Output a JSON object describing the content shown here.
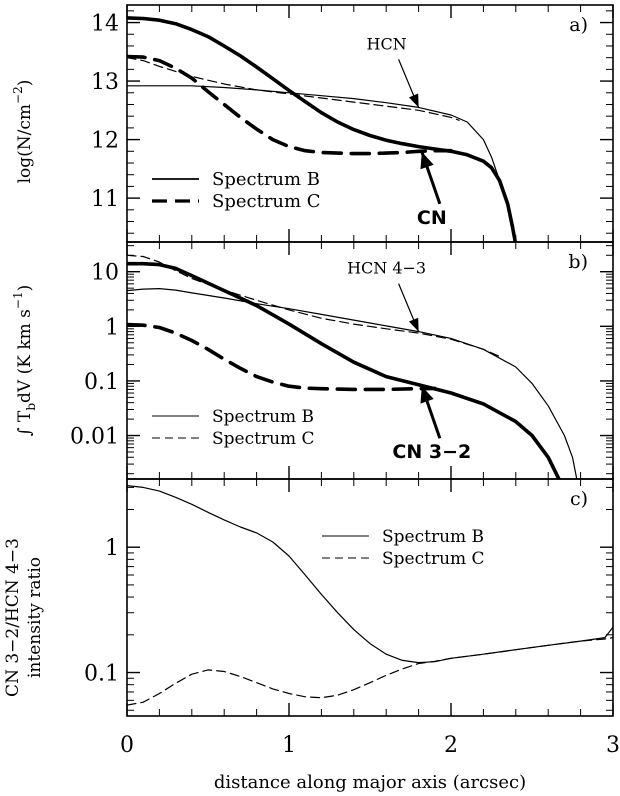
{
  "chart_data": [
    {
      "type": "line",
      "panel_label": "a)",
      "ylabel": "log(N/cm⁻²)",
      "xlim": [
        0,
        3
      ],
      "ylim": [
        10.25,
        14.3
      ],
      "yscale": "linear",
      "yticks": [
        {
          "v": 11,
          "label": "11"
        },
        {
          "v": 12,
          "label": "12"
        },
        {
          "v": 13,
          "label": "13"
        },
        {
          "v": 14,
          "label": "14"
        }
      ],
      "series": [
        {
          "name": "CN",
          "molecule": "CN",
          "spectrum": "B",
          "style": "solid",
          "weight": "thick",
          "x": [
            0,
            0.1,
            0.2,
            0.3,
            0.4,
            0.5,
            0.6,
            0.7,
            0.8,
            0.9,
            1.0,
            1.1,
            1.2,
            1.3,
            1.4,
            1.5,
            1.6,
            1.7,
            1.8,
            1.9,
            2.0,
            2.1,
            2.2,
            2.25,
            2.3,
            2.35,
            2.38,
            2.4
          ],
          "y": [
            14.08,
            14.07,
            14.04,
            13.98,
            13.88,
            13.76,
            13.6,
            13.43,
            13.24,
            13.04,
            12.84,
            12.65,
            12.46,
            12.3,
            12.17,
            12.07,
            11.99,
            11.93,
            11.88,
            11.84,
            11.8,
            11.74,
            11.63,
            11.52,
            11.3,
            10.9,
            10.5,
            10.2
          ]
        },
        {
          "name": "CN",
          "molecule": "CN",
          "spectrum": "C",
          "style": "dashed",
          "weight": "thick",
          "x": [
            0,
            0.1,
            0.2,
            0.3,
            0.4,
            0.5,
            0.6,
            0.7,
            0.8,
            0.9,
            1.0,
            1.1,
            1.2,
            1.3,
            1.4,
            1.5,
            1.6,
            1.7,
            1.8,
            1.9,
            2.0
          ],
          "y": [
            13.42,
            13.41,
            13.35,
            13.22,
            13.05,
            12.82,
            12.6,
            12.38,
            12.18,
            12.0,
            11.88,
            11.81,
            11.78,
            11.77,
            11.76,
            11.76,
            11.77,
            11.78,
            11.8,
            11.81,
            11.81
          ]
        },
        {
          "name": "HCN",
          "molecule": "HCN",
          "spectrum": "B",
          "style": "solid",
          "weight": "thin",
          "x": [
            0,
            0.2,
            0.4,
            0.6,
            0.8,
            1.0,
            1.2,
            1.4,
            1.6,
            1.8,
            2.0,
            2.1,
            2.2,
            2.25,
            2.3,
            2.35,
            2.38,
            2.4
          ],
          "y": [
            12.92,
            12.92,
            12.92,
            12.89,
            12.85,
            12.8,
            12.75,
            12.7,
            12.63,
            12.55,
            12.42,
            12.3,
            12.0,
            11.7,
            11.3,
            10.9,
            10.5,
            10.2
          ]
        },
        {
          "name": "HCN",
          "molecule": "HCN",
          "spectrum": "C",
          "style": "dashed",
          "weight": "thin",
          "x": [
            0,
            0.1,
            0.2,
            0.4,
            0.6,
            0.8,
            1.0,
            1.2,
            1.4,
            1.6,
            1.8,
            2.0,
            2.05
          ],
          "y": [
            13.4,
            13.35,
            13.25,
            13.08,
            12.95,
            12.85,
            12.78,
            12.71,
            12.64,
            12.57,
            12.5,
            12.38,
            12.33
          ]
        }
      ],
      "legend": {
        "solid": "Spectrum B",
        "dashed": "Spectrum C",
        "placement": "lower-left",
        "weight": "thick"
      },
      "annotations": [
        {
          "text": "HCN",
          "arrow_to": [
            1.8,
            12.55
          ],
          "style": "thin"
        },
        {
          "text": "CN",
          "arrow_to": [
            1.82,
            11.79
          ],
          "style": "bold"
        }
      ]
    },
    {
      "type": "line",
      "panel_label": "b)",
      "ylabel": "∫ T_b dV  (K km s⁻¹)",
      "xlim": [
        0,
        3
      ],
      "ylim": [
        0.0016,
        35
      ],
      "yscale": "log",
      "yticks": [
        {
          "v": 0.01,
          "label": "0.01"
        },
        {
          "v": 0.1,
          "label": "0.1"
        },
        {
          "v": 1,
          "label": "1"
        },
        {
          "v": 10,
          "label": "10"
        }
      ],
      "series": [
        {
          "name": "CN 3-2",
          "molecule": "CN 3-2",
          "spectrum": "B",
          "style": "solid",
          "weight": "thick",
          "x": [
            0,
            0.1,
            0.2,
            0.3,
            0.4,
            0.6,
            0.8,
            1.0,
            1.2,
            1.4,
            1.6,
            1.8,
            2.0,
            2.2,
            2.4,
            2.5,
            2.6,
            2.65,
            2.68
          ],
          "y": [
            14,
            14,
            13.5,
            11.5,
            8.5,
            4.5,
            2.4,
            1.1,
            0.48,
            0.22,
            0.12,
            0.085,
            0.06,
            0.038,
            0.018,
            0.01,
            0.004,
            0.002,
            0.0013
          ]
        },
        {
          "name": "CN 3-2",
          "molecule": "CN 3-2",
          "spectrum": "C",
          "style": "dashed",
          "weight": "thick",
          "x": [
            0,
            0.1,
            0.2,
            0.3,
            0.4,
            0.5,
            0.6,
            0.7,
            0.8,
            0.9,
            1.0,
            1.1,
            1.2,
            1.4,
            1.6,
            1.8,
            1.9
          ],
          "y": [
            1.08,
            1.05,
            0.95,
            0.75,
            0.55,
            0.38,
            0.25,
            0.17,
            0.12,
            0.095,
            0.08,
            0.074,
            0.072,
            0.07,
            0.07,
            0.072,
            0.073
          ]
        },
        {
          "name": "HCN 4-3",
          "molecule": "HCN 4-3",
          "spectrum": "B",
          "style": "solid",
          "weight": "thin",
          "x": [
            0,
            0.1,
            0.2,
            0.3,
            0.4,
            0.6,
            0.8,
            1.0,
            1.2,
            1.4,
            1.6,
            1.8,
            2.0,
            2.2,
            2.4,
            2.5,
            2.6,
            2.7,
            2.75,
            2.78
          ],
          "y": [
            4.5,
            4.8,
            4.9,
            4.6,
            4.1,
            3.3,
            2.6,
            2.1,
            1.65,
            1.3,
            1.02,
            0.8,
            0.6,
            0.38,
            0.18,
            0.09,
            0.035,
            0.01,
            0.004,
            0.0014
          ]
        },
        {
          "name": "HCN 4-3",
          "molecule": "HCN 4-3",
          "spectrum": "C",
          "style": "dashed",
          "weight": "thin",
          "x": [
            0,
            0.1,
            0.2,
            0.3,
            0.4,
            0.6,
            0.8,
            1.0,
            1.2,
            1.4,
            1.6,
            1.8,
            2.0,
            2.2,
            2.3
          ],
          "y": [
            20,
            19,
            15,
            10.5,
            7.5,
            4.6,
            3,
            2,
            1.4,
            1.1,
            0.9,
            0.75,
            0.58,
            0.38,
            0.28
          ]
        }
      ],
      "legend": {
        "solid": "Spectrum B",
        "dashed": "Spectrum C",
        "placement": "lower-left",
        "weight": "thin"
      },
      "annotations": [
        {
          "text": "HCN 4−3",
          "arrow_to": [
            1.8,
            0.8
          ],
          "style": "thin"
        },
        {
          "text": "CN 3−2",
          "arrow_to": [
            1.82,
            0.08
          ],
          "style": "bold"
        }
      ]
    },
    {
      "type": "line",
      "panel_label": "c)",
      "ylabel_lines": [
        "CN 3−2/HCN 4−3",
        "intensity ratio"
      ],
      "xlabel": "distance along major axis (arcsec)",
      "xlim": [
        0,
        3
      ],
      "ylim": [
        0.045,
        3.5
      ],
      "yscale": "log",
      "xticks": [
        {
          "v": 0,
          "label": "0"
        },
        {
          "v": 1,
          "label": "1"
        },
        {
          "v": 2,
          "label": "2"
        },
        {
          "v": 3,
          "label": "3"
        }
      ],
      "yticks": [
        {
          "v": 0.1,
          "label": "0.1"
        },
        {
          "v": 1,
          "label": "1"
        }
      ],
      "series": [
        {
          "name": "Spectrum B",
          "spectrum": "B",
          "style": "solid",
          "weight": "thin",
          "x": [
            0,
            0.1,
            0.2,
            0.3,
            0.4,
            0.5,
            0.6,
            0.7,
            0.8,
            0.9,
            1.0,
            1.1,
            1.2,
            1.3,
            1.4,
            1.5,
            1.6,
            1.7,
            1.8,
            1.9,
            2.0,
            2.2,
            2.4,
            2.6,
            2.8,
            2.95,
            3.0
          ],
          "y": [
            3.1,
            3.0,
            2.8,
            2.5,
            2.2,
            1.9,
            1.65,
            1.45,
            1.3,
            1.1,
            0.85,
            0.6,
            0.42,
            0.3,
            0.22,
            0.17,
            0.14,
            0.125,
            0.12,
            0.122,
            0.13,
            0.14,
            0.152,
            0.165,
            0.178,
            0.19,
            0.23
          ]
        },
        {
          "name": "Spectrum C",
          "spectrum": "C",
          "style": "dashed",
          "weight": "thin",
          "x": [
            0,
            0.1,
            0.2,
            0.3,
            0.4,
            0.5,
            0.6,
            0.7,
            0.8,
            0.9,
            1.0,
            1.1,
            1.2,
            1.3,
            1.4,
            1.5,
            1.6,
            1.7,
            1.8,
            1.9,
            2.0,
            2.2,
            2.4,
            2.6,
            2.8,
            2.95,
            3.0
          ],
          "y": [
            0.055,
            0.058,
            0.068,
            0.082,
            0.097,
            0.105,
            0.102,
            0.093,
            0.083,
            0.074,
            0.068,
            0.064,
            0.063,
            0.066,
            0.073,
            0.083,
            0.095,
            0.107,
            0.118,
            0.123,
            0.13,
            0.14,
            0.152,
            0.165,
            0.178,
            0.185,
            0.19
          ]
        }
      ],
      "legend": {
        "solid": "Spectrum B",
        "dashed": "Spectrum C",
        "placement": "upper-right",
        "weight": "thin"
      },
      "annotations": []
    }
  ]
}
